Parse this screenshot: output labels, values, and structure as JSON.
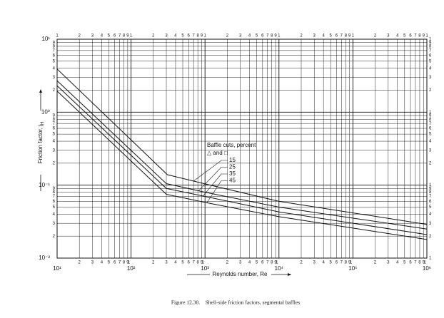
{
  "chart_data": {
    "type": "line",
    "xscale": "log",
    "yscale": "log",
    "grid": true,
    "xlabel": "Reynolds number, Re",
    "ylabel": "Friction factor, j",
    "ylabel_sub": "H",
    "caption": "Figure 12.30.    Shell-side friction factors, segmental baffles",
    "annotation_title": "Baffle cuts, percent",
    "annotation_symbols": "△ and □",
    "xlim": [
      10,
      1000000
    ],
    "ylim": [
      0.01,
      10
    ],
    "xticks": [
      {
        "value": 10,
        "label": "10¹"
      },
      {
        "value": 100,
        "label": "10²"
      },
      {
        "value": 1000,
        "label": "10³"
      },
      {
        "value": 10000,
        "label": "10⁴"
      },
      {
        "value": 100000,
        "label": "10⁵"
      },
      {
        "value": 1000000,
        "label": "10⁶"
      }
    ],
    "yticks": [
      {
        "value": 0.01,
        "label": "10⁻²"
      },
      {
        "value": 0.1,
        "label": "10⁻¹"
      },
      {
        "value": 1,
        "label": "10⁰"
      },
      {
        "value": 10,
        "label": "10¹"
      }
    ],
    "minor_labels": [
      1,
      2,
      3,
      4,
      5,
      6,
      7,
      8,
      9
    ],
    "series": [
      {
        "name": "15",
        "color": "#111111",
        "x": [
          10,
          310,
          1000,
          10000,
          1000000
        ],
        "values": [
          3.9,
          0.139,
          0.104,
          0.06,
          0.029
        ]
      },
      {
        "name": "25",
        "color": "#111111",
        "x": [
          10,
          300,
          1000,
          10000,
          1000000
        ],
        "values": [
          2.7,
          0.105,
          0.08,
          0.05,
          0.025
        ]
      },
      {
        "name": "35",
        "color": "#111111",
        "x": [
          10,
          300,
          1000,
          10000,
          1000000
        ],
        "values": [
          2.3,
          0.09,
          0.07,
          0.043,
          0.021
        ]
      },
      {
        "name": "45",
        "color": "#111111",
        "x": [
          10,
          300,
          1000,
          10000,
          1000000
        ],
        "values": [
          1.95,
          0.075,
          0.058,
          0.037,
          0.018
        ]
      }
    ]
  }
}
